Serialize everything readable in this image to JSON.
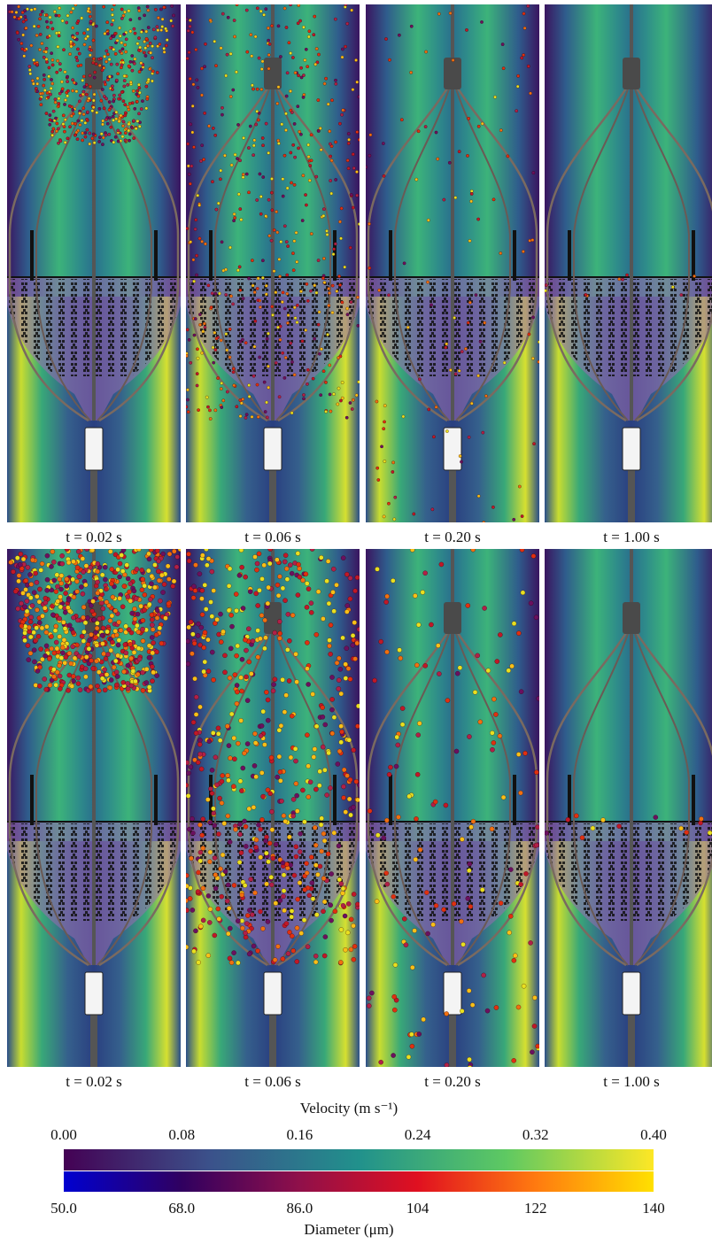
{
  "panels": [
    {
      "label": "t = 0.02 s"
    },
    {
      "label": "t = 0.06 s"
    },
    {
      "label": "t = 0.20 s"
    },
    {
      "label": "t = 1.00 s"
    },
    {
      "label": "t = 0.02 s"
    },
    {
      "label": "t = 0.06 s"
    },
    {
      "label": "t = 0.20 s"
    },
    {
      "label": "t = 1.00 s"
    }
  ],
  "velocity_colorbar": {
    "title": "Velocity (m s⁻¹)",
    "ticks": [
      "0.00",
      "0.08",
      "0.16",
      "0.24",
      "0.32",
      "0.40"
    ]
  },
  "diameter_colorbar": {
    "title": "Diameter (μm)",
    "ticks": [
      "50.0",
      "68.0",
      "86.0",
      "104",
      "122",
      "140"
    ]
  }
}
